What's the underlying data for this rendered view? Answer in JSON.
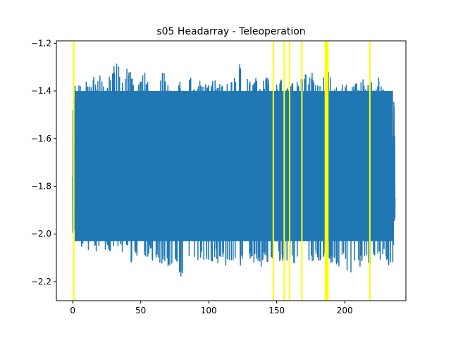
{
  "chart_data": {
    "type": "line",
    "title": "s05 Headarray - Teleoperation",
    "xlabel": "",
    "ylabel": "",
    "xlim": [
      -12,
      245
    ],
    "ylim": [
      -2.28,
      -1.19
    ],
    "xticks": [
      0,
      50,
      100,
      150,
      200
    ],
    "yticks": [
      -1.2,
      -1.4,
      -1.6,
      -1.8,
      -2.0,
      -2.2
    ],
    "ytick_labels": [
      "−1.2",
      "−1.4",
      "−1.6",
      "−1.8",
      "−2.0",
      "−2.2"
    ],
    "grid": false,
    "line_color": "#1f77b4",
    "marker_color": "#ffff00",
    "event_markers_x": [
      0.8,
      147.5,
      155.5,
      159.5,
      168.5,
      185.8,
      186.8,
      187.6,
      218.5
    ],
    "x_range": [
      0,
      237
    ],
    "upper_envelope": [
      [
        0,
        -1.6
      ],
      [
        1,
        -1.36
      ],
      [
        3,
        -1.34
      ],
      [
        5,
        -1.36
      ],
      [
        7,
        -1.33
      ],
      [
        9,
        -1.3
      ],
      [
        11,
        -1.35
      ],
      [
        13,
        -1.38
      ],
      [
        15,
        -1.33
      ],
      [
        17,
        -1.38
      ],
      [
        19,
        -1.32
      ],
      [
        21,
        -1.33
      ],
      [
        23,
        -1.35
      ],
      [
        25,
        -1.36
      ],
      [
        27,
        -1.34
      ],
      [
        29,
        -1.3
      ],
      [
        31,
        -1.29
      ],
      [
        33,
        -1.24
      ],
      [
        35,
        -1.33
      ],
      [
        37,
        -1.37
      ],
      [
        39,
        -1.31
      ],
      [
        41,
        -1.3
      ],
      [
        43,
        -1.32
      ],
      [
        45,
        -1.35
      ],
      [
        47,
        -1.4
      ],
      [
        49,
        -1.36
      ],
      [
        51,
        -1.33
      ],
      [
        53,
        -1.31
      ],
      [
        55,
        -1.36
      ],
      [
        57,
        -1.34
      ],
      [
        59,
        -1.38
      ],
      [
        61,
        -1.32
      ],
      [
        63,
        -1.38
      ],
      [
        65,
        -1.34
      ],
      [
        67,
        -1.3
      ],
      [
        69,
        -1.38
      ],
      [
        71,
        -1.36
      ],
      [
        73,
        -1.39
      ],
      [
        75,
        -1.3
      ],
      [
        77,
        -1.37
      ],
      [
        79,
        -1.35
      ],
      [
        81,
        -1.4
      ],
      [
        83,
        -1.37
      ],
      [
        85,
        -1.35
      ],
      [
        87,
        -1.31
      ],
      [
        89,
        -1.37
      ],
      [
        91,
        -1.38
      ],
      [
        93,
        -1.34
      ],
      [
        95,
        -1.38
      ],
      [
        97,
        -1.35
      ],
      [
        99,
        -1.37
      ],
      [
        101,
        -1.35
      ],
      [
        103,
        -1.34
      ],
      [
        105,
        -1.36
      ],
      [
        107,
        -1.39
      ],
      [
        109,
        -1.34
      ],
      [
        111,
        -1.37
      ],
      [
        113,
        -1.35
      ],
      [
        115,
        -1.38
      ],
      [
        117,
        -1.36
      ],
      [
        119,
        -1.34
      ],
      [
        121,
        -1.37
      ],
      [
        123,
        -1.27
      ],
      [
        125,
        -1.34
      ],
      [
        127,
        -1.39
      ],
      [
        129,
        -1.33
      ],
      [
        131,
        -1.37
      ],
      [
        133,
        -1.36
      ],
      [
        135,
        -1.34
      ],
      [
        137,
        -1.38
      ],
      [
        139,
        -1.35
      ],
      [
        141,
        -1.36
      ],
      [
        143,
        -1.33
      ],
      [
        145,
        -1.38
      ],
      [
        147,
        -1.37
      ],
      [
        149,
        -1.35
      ],
      [
        151,
        -1.38
      ],
      [
        153,
        -1.33
      ],
      [
        155,
        -1.36
      ],
      [
        157,
        -1.38
      ],
      [
        159,
        -1.34
      ],
      [
        161,
        -1.36
      ],
      [
        163,
        -1.38
      ],
      [
        165,
        -1.35
      ],
      [
        167,
        -1.37
      ],
      [
        169,
        -1.33
      ],
      [
        171,
        -1.31
      ],
      [
        173,
        -1.37
      ],
      [
        175,
        -1.3
      ],
      [
        177,
        -1.34
      ],
      [
        179,
        -1.38
      ],
      [
        181,
        -1.35
      ],
      [
        183,
        -1.37
      ],
      [
        185,
        -1.33
      ],
      [
        187,
        -1.35
      ],
      [
        189,
        -1.3
      ],
      [
        191,
        -1.36
      ],
      [
        193,
        -1.38
      ],
      [
        195,
        -1.34
      ],
      [
        197,
        -1.39
      ],
      [
        199,
        -1.35
      ],
      [
        201,
        -1.37
      ],
      [
        203,
        -1.33
      ],
      [
        205,
        -1.36
      ],
      [
        207,
        -1.38
      ],
      [
        209,
        -1.35
      ],
      [
        211,
        -1.37
      ],
      [
        213,
        -1.34
      ],
      [
        215,
        -1.38
      ],
      [
        217,
        -1.36
      ],
      [
        219,
        -1.35
      ],
      [
        221,
        -1.37
      ],
      [
        223,
        -1.38
      ],
      [
        225,
        -1.34
      ],
      [
        227,
        -1.38
      ],
      [
        229,
        -1.4
      ],
      [
        231,
        -1.45
      ],
      [
        233,
        -1.42
      ],
      [
        235,
        -1.39
      ],
      [
        237,
        -1.6
      ]
    ],
    "lower_envelope": [
      [
        0,
        -1.86
      ],
      [
        1,
        -2.06
      ],
      [
        3,
        -2.03
      ],
      [
        5,
        -2.05
      ],
      [
        7,
        -2.06
      ],
      [
        9,
        -2.04
      ],
      [
        11,
        -2.08
      ],
      [
        13,
        -2.05
      ],
      [
        15,
        -2.04
      ],
      [
        17,
        -2.09
      ],
      [
        19,
        -2.06
      ],
      [
        21,
        -2.04
      ],
      [
        23,
        -2.08
      ],
      [
        25,
        -2.05
      ],
      [
        27,
        -2.07
      ],
      [
        29,
        -2.1
      ],
      [
        31,
        -2.06
      ],
      [
        33,
        -2.08
      ],
      [
        35,
        -2.05
      ],
      [
        37,
        -2.1
      ],
      [
        39,
        -2.07
      ],
      [
        41,
        -2.05
      ],
      [
        43,
        -2.12
      ],
      [
        45,
        -2.08
      ],
      [
        47,
        -2.1
      ],
      [
        49,
        -2.06
      ],
      [
        51,
        -2.13
      ],
      [
        53,
        -2.09
      ],
      [
        55,
        -2.11
      ],
      [
        57,
        -2.07
      ],
      [
        59,
        -2.14
      ],
      [
        61,
        -2.12
      ],
      [
        63,
        -2.1
      ],
      [
        65,
        -2.16
      ],
      [
        67,
        -2.13
      ],
      [
        69,
        -2.11
      ],
      [
        71,
        -2.17
      ],
      [
        73,
        -2.14
      ],
      [
        75,
        -2.12
      ],
      [
        77,
        -2.15
      ],
      [
        79,
        -2.17
      ],
      [
        81,
        -2.2
      ],
      [
        83,
        -2.13
      ],
      [
        85,
        -2.11
      ],
      [
        87,
        -2.16
      ],
      [
        89,
        -2.12
      ],
      [
        91,
        -2.1
      ],
      [
        93,
        -2.14
      ],
      [
        95,
        -2.11
      ],
      [
        97,
        -2.13
      ],
      [
        99,
        -2.1
      ],
      [
        101,
        -2.15
      ],
      [
        103,
        -2.12
      ],
      [
        105,
        -2.09
      ],
      [
        107,
        -2.13
      ],
      [
        109,
        -2.1
      ],
      [
        111,
        -2.12
      ],
      [
        113,
        -2.14
      ],
      [
        115,
        -2.11
      ],
      [
        117,
        -2.13
      ],
      [
        119,
        -2.1
      ],
      [
        121,
        -2.12
      ],
      [
        123,
        -2.14
      ],
      [
        125,
        -2.1
      ],
      [
        127,
        -2.23
      ],
      [
        129,
        -2.13
      ],
      [
        131,
        -2.11
      ],
      [
        133,
        -2.14
      ],
      [
        135,
        -2.1
      ],
      [
        137,
        -2.12
      ],
      [
        139,
        -2.15
      ],
      [
        141,
        -2.11
      ],
      [
        143,
        -2.13
      ],
      [
        145,
        -2.1
      ],
      [
        147,
        -2.14
      ],
      [
        149,
        -2.12
      ],
      [
        151,
        -2.1
      ],
      [
        153,
        -2.13
      ],
      [
        155,
        -2.11
      ],
      [
        157,
        -2.14
      ],
      [
        159,
        -2.1
      ],
      [
        161,
        -2.12
      ],
      [
        163,
        -2.14
      ],
      [
        165,
        -2.11
      ],
      [
        167,
        -2.13
      ],
      [
        169,
        -2.1
      ],
      [
        171,
        -2.12
      ],
      [
        173,
        -2.14
      ],
      [
        175,
        -2.11
      ],
      [
        177,
        -2.13
      ],
      [
        179,
        -2.1
      ],
      [
        181,
        -2.12
      ],
      [
        183,
        -2.15
      ],
      [
        185,
        -2.11
      ],
      [
        187,
        -2.14
      ],
      [
        189,
        -2.12
      ],
      [
        191,
        -2.13
      ],
      [
        193,
        -2.1
      ],
      [
        195,
        -2.16
      ],
      [
        197,
        -2.13
      ],
      [
        199,
        -2.11
      ],
      [
        201,
        -2.14
      ],
      [
        203,
        -2.17
      ],
      [
        205,
        -2.2
      ],
      [
        207,
        -2.15
      ],
      [
        209,
        -2.12
      ],
      [
        211,
        -2.14
      ],
      [
        213,
        -2.11
      ],
      [
        215,
        -2.13
      ],
      [
        217,
        -2.12
      ],
      [
        219,
        -2.14
      ],
      [
        221,
        -2.11
      ],
      [
        223,
        -2.13
      ],
      [
        225,
        -2.1
      ],
      [
        227,
        -2.12
      ],
      [
        229,
        -2.08
      ],
      [
        231,
        -2.12
      ],
      [
        233,
        -2.14
      ],
      [
        235,
        -2.17
      ],
      [
        237,
        -1.9
      ]
    ],
    "core_band": [
      -2.03,
      -1.4
    ],
    "start_value": -1.76,
    "end_value": -1.85
  }
}
